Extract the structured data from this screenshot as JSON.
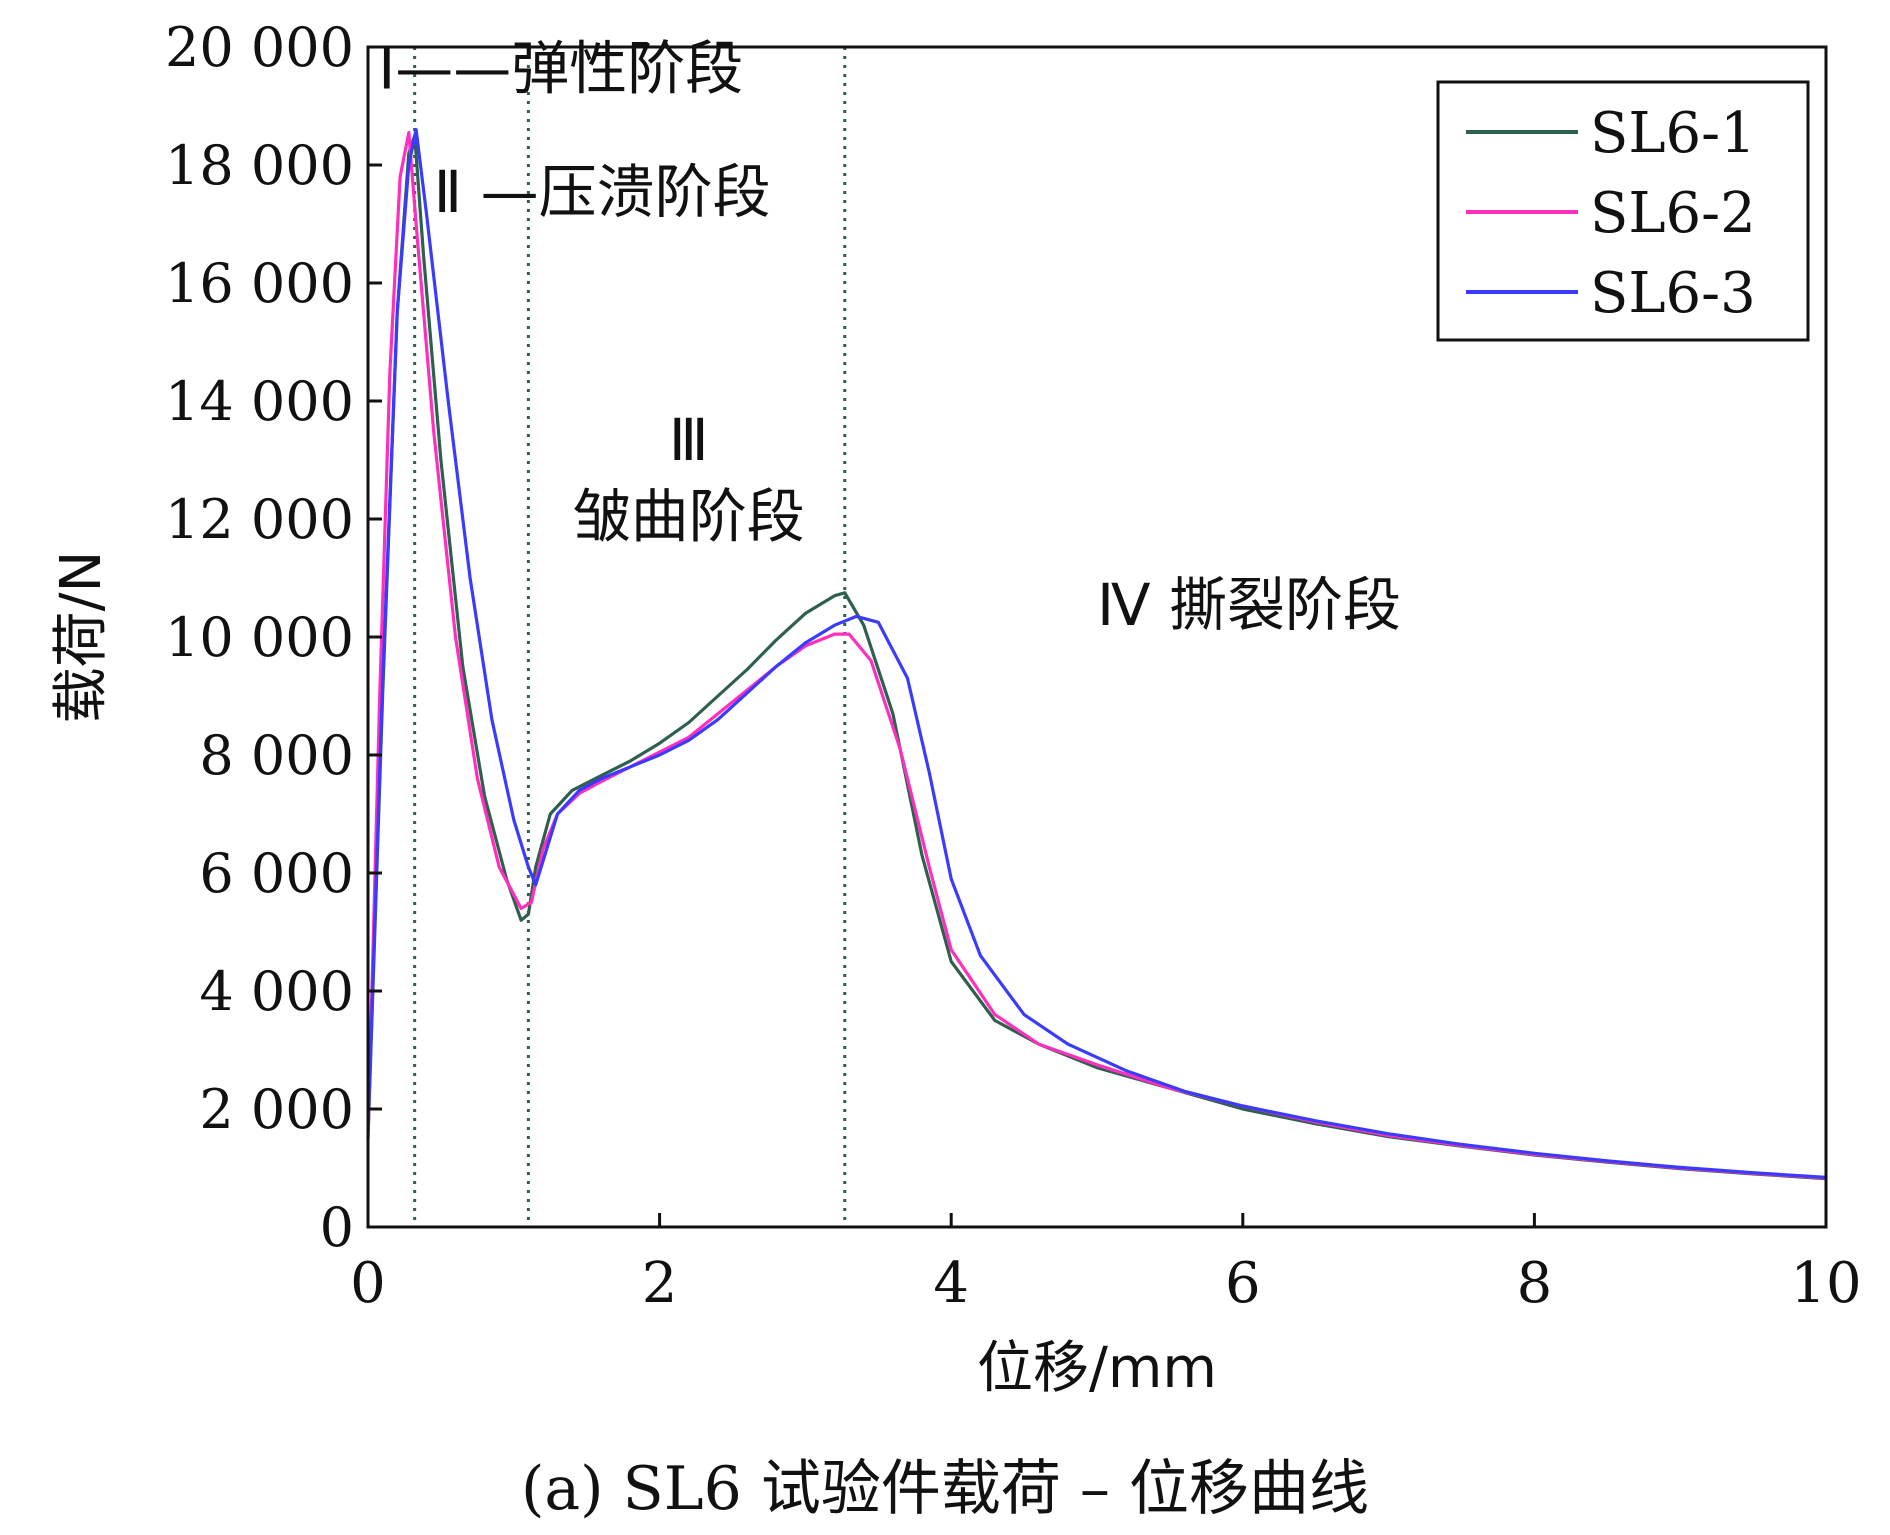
{
  "caption": "(a) SL6 试验件载荷 – 位移曲线",
  "chart_data": {
    "type": "line",
    "title": "",
    "xlabel": "位移/mm",
    "ylabel": "载荷/N",
    "xlim": [
      0,
      10
    ],
    "ylim": [
      0,
      20000
    ],
    "x_ticks": [
      0,
      2,
      4,
      6,
      8,
      10
    ],
    "x_tick_labels": [
      "0",
      "2",
      "4",
      "6",
      "8",
      "10"
    ],
    "y_ticks": [
      0,
      2000,
      4000,
      6000,
      8000,
      10000,
      12000,
      14000,
      16000,
      18000,
      20000
    ],
    "y_tick_labels": [
      "0",
      "2 000",
      "4 000",
      "6 000",
      "8 000",
      "10 000",
      "12 000",
      "14 000",
      "16 000",
      "18 000",
      "20 000"
    ],
    "grid": false,
    "legend_position": "top-right",
    "stage_boundaries": [
      0.32,
      1.1,
      3.27
    ],
    "annotations": [
      {
        "text": "Ⅰ——弹性阶段",
        "x": 0.07,
        "y": 19300
      },
      {
        "text": "Ⅱ —压溃阶段",
        "x": 0.45,
        "y": 17200
      },
      {
        "text": "Ⅲ",
        "x": 2.2,
        "y": 13000
      },
      {
        "text": "皱曲阶段",
        "x": 2.2,
        "y": 11700
      },
      {
        "text": "Ⅳ 撕裂阶段",
        "x": 5.0,
        "y": 10200
      }
    ],
    "series": [
      {
        "name": "SL6-1",
        "color": "#2f5f4f",
        "points": [
          [
            0,
            1500
          ],
          [
            0.1,
            9000
          ],
          [
            0.2,
            15500
          ],
          [
            0.28,
            18200
          ],
          [
            0.32,
            18500
          ],
          [
            0.38,
            16500
          ],
          [
            0.5,
            13000
          ],
          [
            0.65,
            9500
          ],
          [
            0.8,
            7300
          ],
          [
            0.95,
            5900
          ],
          [
            1.05,
            5200
          ],
          [
            1.1,
            5300
          ],
          [
            1.15,
            6100
          ],
          [
            1.25,
            7000
          ],
          [
            1.4,
            7400
          ],
          [
            1.6,
            7650
          ],
          [
            1.8,
            7900
          ],
          [
            2.0,
            8200
          ],
          [
            2.2,
            8550
          ],
          [
            2.4,
            9000
          ],
          [
            2.6,
            9450
          ],
          [
            2.8,
            9950
          ],
          [
            3.0,
            10400
          ],
          [
            3.2,
            10700
          ],
          [
            3.27,
            10750
          ],
          [
            3.4,
            10200
          ],
          [
            3.6,
            8700
          ],
          [
            3.8,
            6300
          ],
          [
            4.0,
            4500
          ],
          [
            4.3,
            3500
          ],
          [
            4.6,
            3100
          ],
          [
            5.0,
            2700
          ],
          [
            5.5,
            2350
          ],
          [
            6.0,
            2000
          ],
          [
            6.5,
            1750
          ],
          [
            7.0,
            1530
          ],
          [
            7.5,
            1370
          ],
          [
            8.0,
            1220
          ],
          [
            8.5,
            1100
          ],
          [
            9.0,
            990
          ],
          [
            9.5,
            900
          ],
          [
            10.0,
            820
          ]
        ]
      },
      {
        "name": "SL6-2",
        "color": "#ff2fbe",
        "points": [
          [
            0,
            1500
          ],
          [
            0.08,
            9000
          ],
          [
            0.15,
            14500
          ],
          [
            0.22,
            17800
          ],
          [
            0.28,
            18550
          ],
          [
            0.33,
            17000
          ],
          [
            0.45,
            13500
          ],
          [
            0.6,
            10000
          ],
          [
            0.75,
            7600
          ],
          [
            0.9,
            6100
          ],
          [
            1.05,
            5400
          ],
          [
            1.12,
            5500
          ],
          [
            1.2,
            6400
          ],
          [
            1.3,
            7000
          ],
          [
            1.45,
            7350
          ],
          [
            1.6,
            7550
          ],
          [
            1.8,
            7800
          ],
          [
            2.0,
            8050
          ],
          [
            2.2,
            8300
          ],
          [
            2.4,
            8700
          ],
          [
            2.6,
            9100
          ],
          [
            2.8,
            9500
          ],
          [
            3.0,
            9850
          ],
          [
            3.2,
            10050
          ],
          [
            3.3,
            10050
          ],
          [
            3.45,
            9600
          ],
          [
            3.65,
            8100
          ],
          [
            3.85,
            6100
          ],
          [
            4.0,
            4700
          ],
          [
            4.3,
            3600
          ],
          [
            4.6,
            3100
          ],
          [
            5.0,
            2750
          ],
          [
            5.5,
            2350
          ],
          [
            6.0,
            2050
          ],
          [
            6.5,
            1780
          ],
          [
            7.0,
            1550
          ],
          [
            7.5,
            1380
          ],
          [
            8.0,
            1230
          ],
          [
            8.5,
            1110
          ],
          [
            9.0,
            1000
          ],
          [
            9.5,
            910
          ],
          [
            10.0,
            830
          ]
        ]
      },
      {
        "name": "SL6-3",
        "color": "#3b3bff",
        "points": [
          [
            0,
            1600
          ],
          [
            0.1,
            9200
          ],
          [
            0.2,
            15500
          ],
          [
            0.28,
            18000
          ],
          [
            0.33,
            18600
          ],
          [
            0.4,
            17200
          ],
          [
            0.55,
            14000
          ],
          [
            0.7,
            11000
          ],
          [
            0.85,
            8600
          ],
          [
            1.0,
            6900
          ],
          [
            1.1,
            6100
          ],
          [
            1.15,
            5800
          ],
          [
            1.2,
            6200
          ],
          [
            1.3,
            7000
          ],
          [
            1.45,
            7400
          ],
          [
            1.6,
            7600
          ],
          [
            1.8,
            7800
          ],
          [
            2.0,
            8000
          ],
          [
            2.2,
            8250
          ],
          [
            2.4,
            8600
          ],
          [
            2.6,
            9050
          ],
          [
            2.8,
            9500
          ],
          [
            3.0,
            9900
          ],
          [
            3.2,
            10200
          ],
          [
            3.35,
            10350
          ],
          [
            3.5,
            10250
          ],
          [
            3.7,
            9300
          ],
          [
            3.85,
            7700
          ],
          [
            4.0,
            5900
          ],
          [
            4.2,
            4600
          ],
          [
            4.5,
            3600
          ],
          [
            4.8,
            3100
          ],
          [
            5.2,
            2650
          ],
          [
            5.6,
            2300
          ],
          [
            6.0,
            2050
          ],
          [
            6.5,
            1800
          ],
          [
            7.0,
            1580
          ],
          [
            7.5,
            1400
          ],
          [
            8.0,
            1250
          ],
          [
            8.5,
            1120
          ],
          [
            9.0,
            1010
          ],
          [
            9.5,
            920
          ],
          [
            10.0,
            840
          ]
        ]
      }
    ]
  }
}
